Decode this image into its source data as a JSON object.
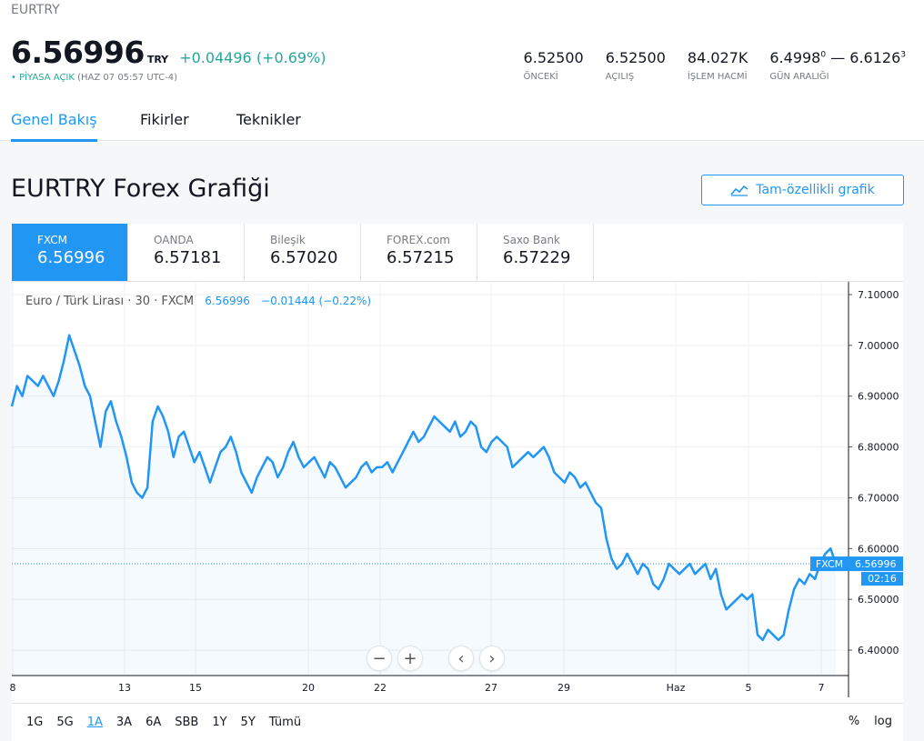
{
  "header": {
    "symbol": "EURTRY",
    "price": "6.56996",
    "currency": "TRY",
    "change": "+0.04496 (+0.69%)",
    "market_status": "PİYASA AÇIK",
    "timestamp": "(HAZ 07 05:57 UTC-4)",
    "stats": [
      {
        "value": "6.52500",
        "label": "ÖNCEKİ"
      },
      {
        "value": "6.52500",
        "label": "AÇILIŞ"
      },
      {
        "value": "84.027K",
        "label": "İŞLEM HACMİ"
      }
    ],
    "day_range": {
      "low": "6.4998",
      "low_sup": "0",
      "sep": "—",
      "high": "6.6126",
      "high_sup": "3",
      "label": "GÜN ARALIĞI"
    }
  },
  "tabs": [
    {
      "label": "Genel Bakış",
      "active": true
    },
    {
      "label": "Fikirler",
      "active": false
    },
    {
      "label": "Teknikler",
      "active": false
    }
  ],
  "section": {
    "title": "EURTRY Forex Grafiği",
    "full_chart_label": "Tam-özellikli grafik"
  },
  "brokers": [
    {
      "name": "FXCM",
      "price": "6.56996",
      "active": true
    },
    {
      "name": "OANDA",
      "price": "6.57181",
      "active": false
    },
    {
      "name": "Bileşik",
      "price": "6.57020",
      "active": false
    },
    {
      "name": "FOREX.com",
      "price": "6.57215",
      "active": false
    },
    {
      "name": "Saxo Bank",
      "price": "6.57229",
      "active": false
    }
  ],
  "legend": {
    "title": "Euro / Türk Lirası · 30 · FXCM",
    "price": "6.56996",
    "change": "−0.01444 (−0.22%)"
  },
  "ranges": [
    "1G",
    "5G",
    "1A",
    "3A",
    "6A",
    "SBB",
    "1Y",
    "5Y",
    "Tümü"
  ],
  "active_range": "1A",
  "scale_options": [
    "%",
    "log"
  ],
  "zoom_buttons": [
    "−",
    "+",
    "‹",
    "›"
  ],
  "chart_data": {
    "type": "area",
    "x_ticks": [
      "8",
      "13",
      "15",
      "20",
      "22",
      "27",
      "29",
      "Haz",
      "5",
      "7"
    ],
    "y_ticks": [
      "7.10000",
      "7.00000",
      "6.90000",
      "6.80000",
      "6.70000",
      "6.60000",
      "6.50000",
      "6.40000"
    ],
    "ylim": [
      6.35,
      7.125
    ],
    "series": [
      {
        "values": [
          6.88,
          6.92,
          6.9,
          6.94,
          6.93,
          6.92,
          6.94,
          6.92,
          6.9,
          6.93,
          6.97,
          7.02,
          6.99,
          6.96,
          6.92,
          6.9,
          6.85,
          6.8,
          6.87,
          6.89,
          6.85,
          6.82,
          6.78,
          6.73,
          6.71,
          6.7,
          6.72,
          6.85,
          6.88,
          6.86,
          6.83,
          6.78,
          6.82,
          6.83,
          6.8,
          6.77,
          6.79,
          6.76,
          6.73,
          6.76,
          6.79,
          6.8,
          6.82,
          6.79,
          6.75,
          6.73,
          6.71,
          6.74,
          6.76,
          6.78,
          6.77,
          6.74,
          6.76,
          6.79,
          6.81,
          6.78,
          6.76,
          6.77,
          6.78,
          6.76,
          6.74,
          6.77,
          6.76,
          6.74,
          6.72,
          6.73,
          6.74,
          6.76,
          6.77,
          6.75,
          6.76,
          6.76,
          6.77,
          6.75,
          6.77,
          6.79,
          6.81,
          6.83,
          6.81,
          6.82,
          6.84,
          6.86,
          6.85,
          6.84,
          6.83,
          6.85,
          6.82,
          6.83,
          6.85,
          6.84,
          6.8,
          6.79,
          6.81,
          6.82,
          6.81,
          6.8,
          6.76,
          6.77,
          6.78,
          6.79,
          6.78,
          6.79,
          6.8,
          6.78,
          6.75,
          6.74,
          6.73,
          6.75,
          6.74,
          6.72,
          6.73,
          6.71,
          6.69,
          6.68,
          6.62,
          6.58,
          6.56,
          6.57,
          6.59,
          6.57,
          6.55,
          6.57,
          6.56,
          6.53,
          6.52,
          6.54,
          6.57,
          6.56,
          6.55,
          6.56,
          6.57,
          6.55,
          6.56,
          6.57,
          6.54,
          6.56,
          6.51,
          6.48,
          6.49,
          6.5,
          6.51,
          6.5,
          6.51,
          6.43,
          6.42,
          6.44,
          6.43,
          6.42,
          6.43,
          6.48,
          6.52,
          6.54,
          6.53,
          6.55,
          6.54,
          6.57,
          6.59,
          6.6,
          6.57
        ]
      }
    ],
    "last_value": "6.56996",
    "last_label": "FXCM",
    "countdown": "02:16"
  }
}
